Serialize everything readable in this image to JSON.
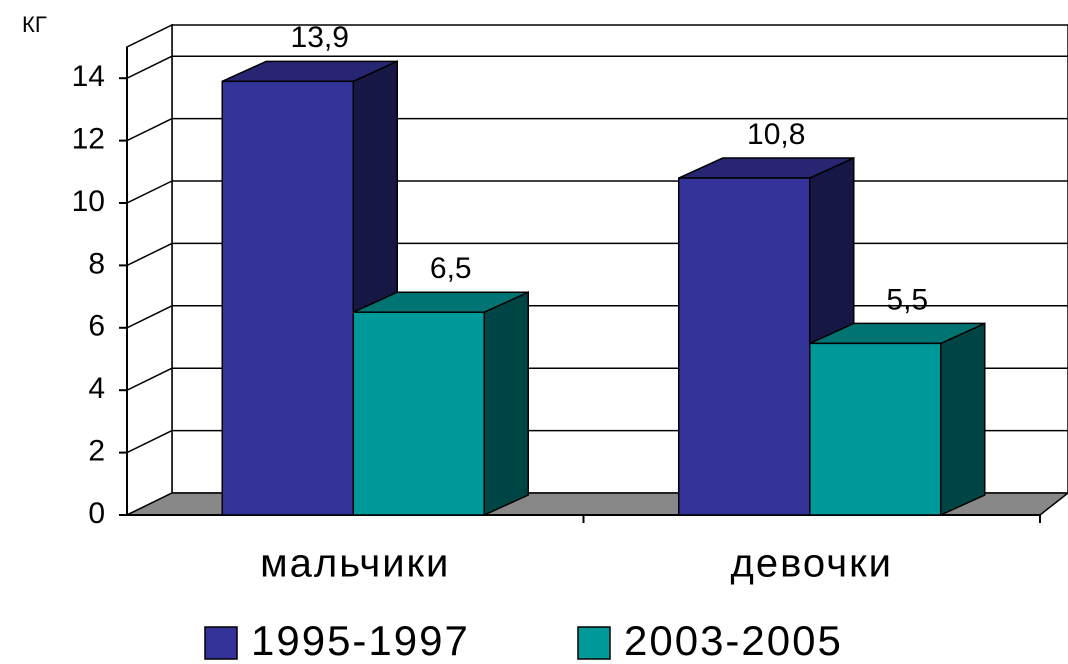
{
  "chart_data": {
    "type": "bar3d",
    "y_label": "КГ",
    "categories": [
      "мальчики",
      "девочки"
    ],
    "series": [
      {
        "name": "1995-1997",
        "color": "#333399",
        "values": [
          13.9,
          10.8
        ],
        "value_labels": [
          "13,9",
          "10,8"
        ]
      },
      {
        "name": "2003-2005",
        "color": "#009999",
        "values": [
          6.5,
          5.5
        ],
        "value_labels": [
          "6,5",
          "5,5"
        ]
      }
    ],
    "ylim": [
      0,
      15
    ],
    "yticks": [
      0,
      2,
      4,
      6,
      8,
      10,
      12,
      14
    ],
    "grid": true,
    "legend": "bottom"
  }
}
